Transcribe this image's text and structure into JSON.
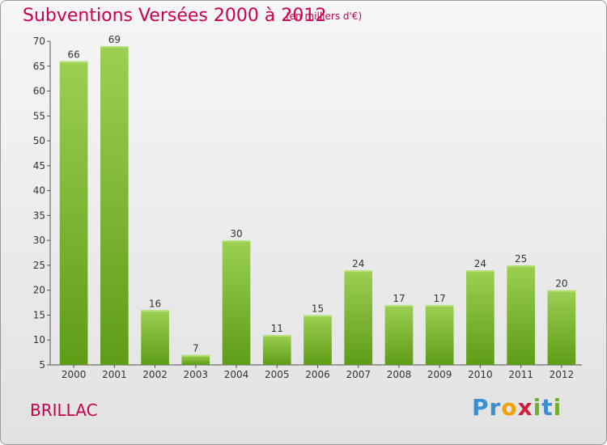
{
  "title": "Subventions Versées 2000 à 2012",
  "subtitle": "(en milliers d'€)",
  "commune": "BRILLAC",
  "logo": {
    "letters": [
      "P",
      "r",
      "o",
      "x",
      "i",
      "t",
      "i"
    ],
    "colors": [
      "#3a8fd0",
      "#3a8fd0",
      "#f0a000",
      "#d02040",
      "#70b030",
      "#3a8fd0",
      "#70b030"
    ]
  },
  "chart_data": {
    "type": "bar",
    "categories": [
      "2000",
      "2001",
      "2002",
      "2003",
      "2004",
      "2005",
      "2006",
      "2007",
      "2008",
      "2009",
      "2010",
      "2011",
      "2012"
    ],
    "values": [
      66,
      69,
      16,
      7,
      30,
      11,
      15,
      24,
      17,
      17,
      24,
      25,
      20
    ],
    "ylim": [
      5,
      70
    ],
    "yticks": [
      5,
      10,
      15,
      20,
      25,
      30,
      35,
      40,
      45,
      50,
      55,
      60,
      65,
      70
    ],
    "grid": false,
    "bar_color": "#7ab834"
  }
}
